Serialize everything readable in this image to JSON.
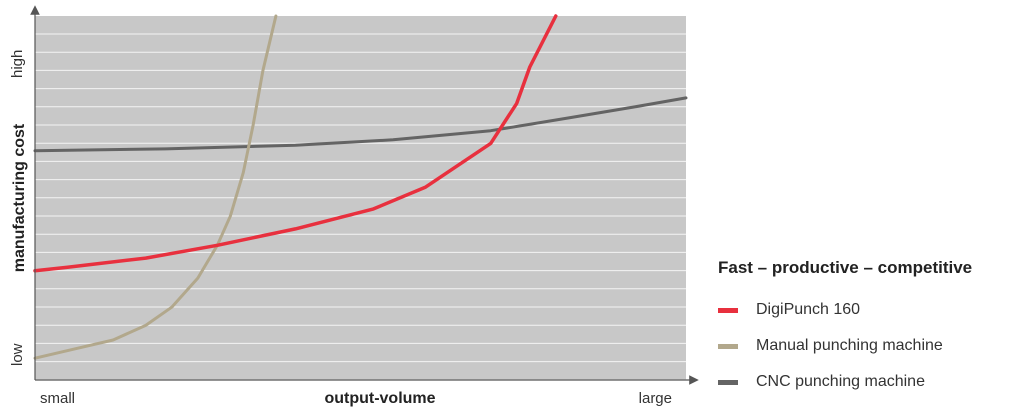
{
  "chart_data": {
    "type": "line",
    "title": "",
    "xlabel": "output-volume",
    "ylabel": "manufacturing cost",
    "x_tick_labels": {
      "left": "small",
      "right": "large"
    },
    "y_tick_labels": {
      "bottom": "low",
      "top": "high"
    },
    "xlim": [
      0,
      100
    ],
    "ylim": [
      0,
      100
    ],
    "grid": true,
    "background_color": "#c8c8c8",
    "grid_color": "#ffffff",
    "legend": {
      "title": "Fast – productive – competitive",
      "position": "right"
    },
    "series": [
      {
        "name": "DigiPunch 160",
        "color": "#e8303e",
        "x": [
          0,
          5,
          17,
          28,
          40,
          52,
          60,
          70,
          74,
          76,
          80
        ],
        "y": [
          30,
          31,
          33.5,
          37,
          41.5,
          47,
          53,
          65,
          76,
          86,
          100
        ]
      },
      {
        "name": "Manual punching machine",
        "color": "#b2a88c",
        "x": [
          0,
          6,
          12,
          17,
          21,
          25,
          28,
          30,
          32,
          33.5,
          35,
          37
        ],
        "y": [
          6,
          8.5,
          11,
          15,
          20,
          28,
          37,
          45,
          57,
          70,
          85,
          100
        ]
      },
      {
        "name": "CNC punching machine",
        "color": "#646464",
        "x": [
          0,
          20,
          40,
          55,
          70,
          82,
          92,
          100
        ],
        "y": [
          63,
          63.5,
          64.5,
          66,
          68.5,
          72,
          75,
          77.5
        ]
      }
    ]
  }
}
